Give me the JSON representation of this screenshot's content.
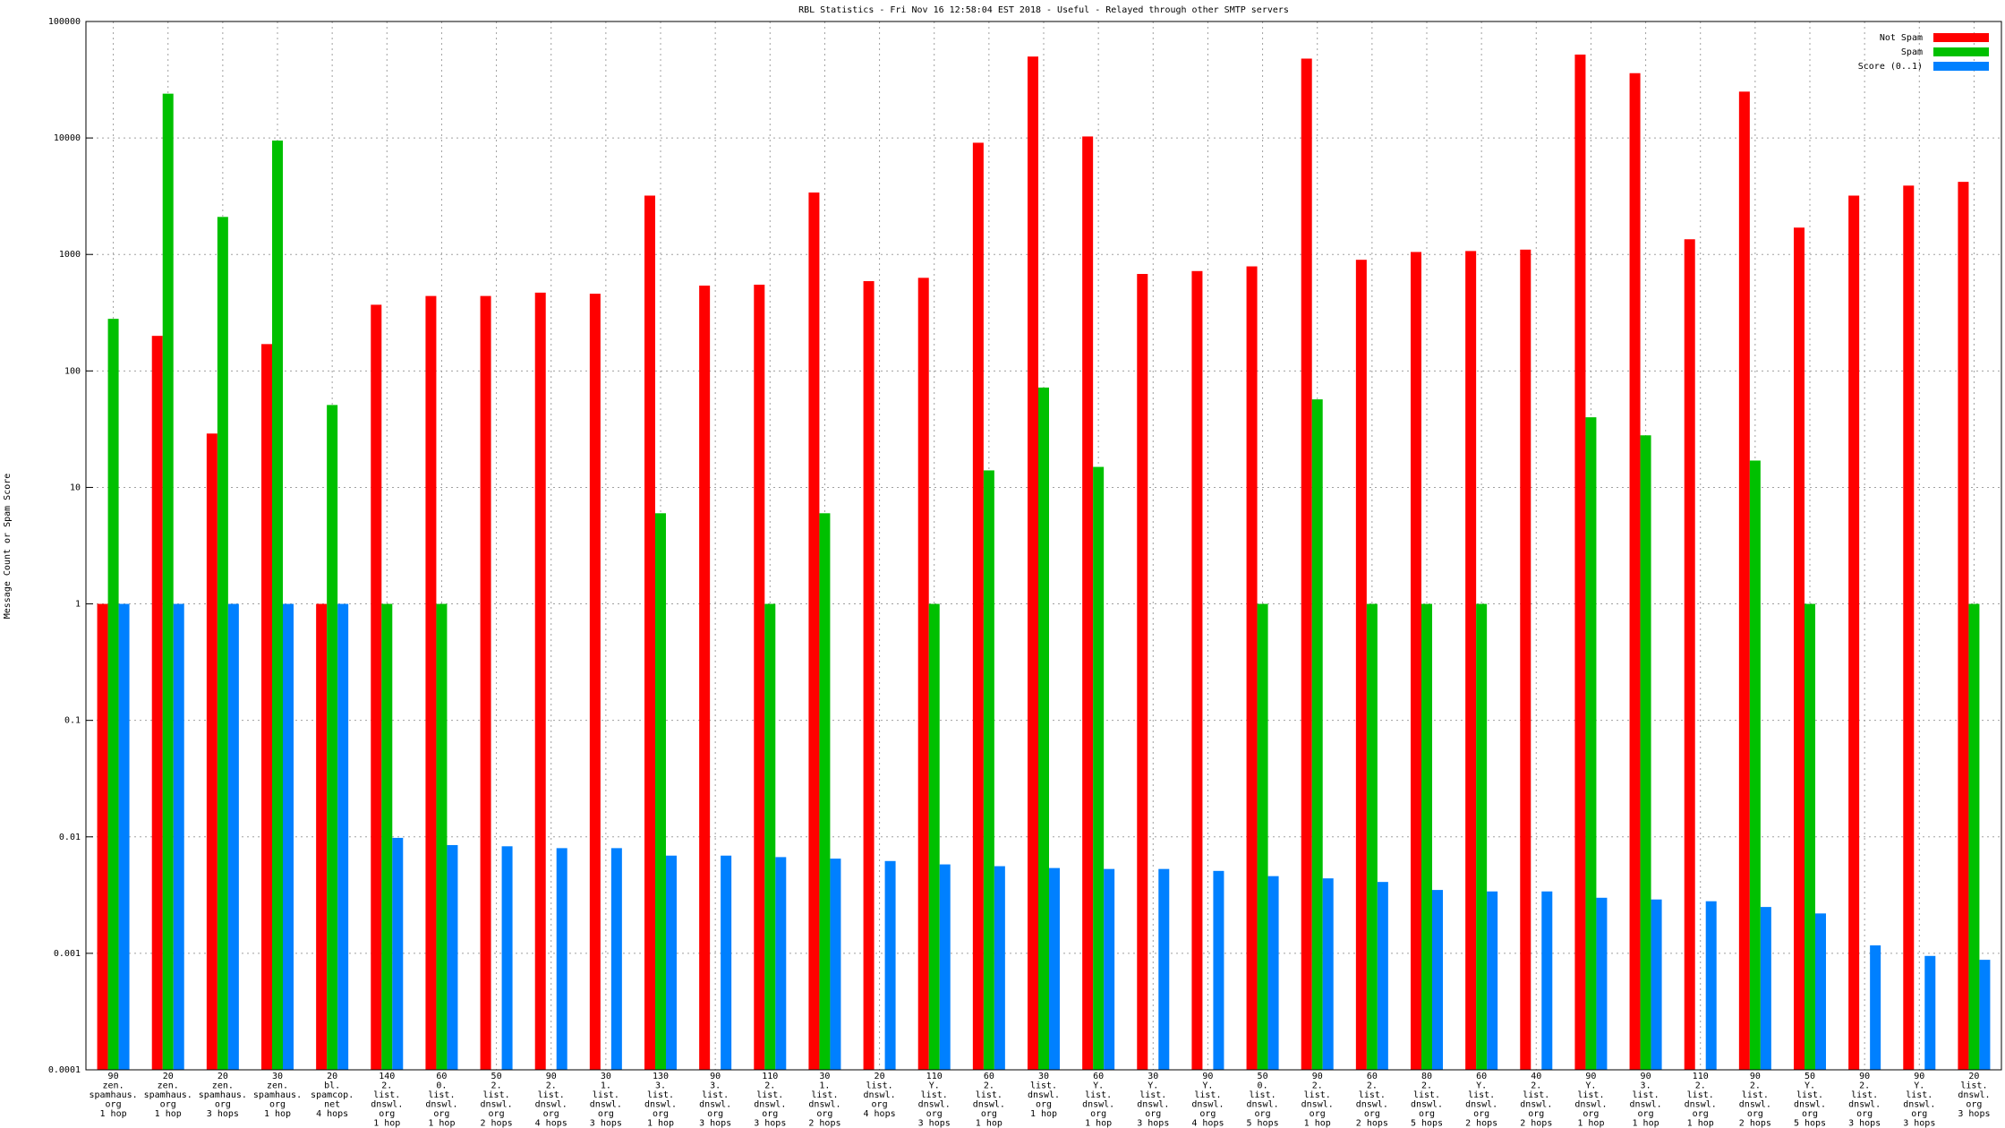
{
  "chart_data": {
    "type": "bar",
    "title": "RBL Statistics - Fri Nov 16 12:58:04 EST 2018 - Useful - Relayed through other SMTP servers",
    "y_label": "Message Count or Spam Score",
    "log_scale": true,
    "grid": true,
    "legend_position": "top-right",
    "ylim": [
      0.0001,
      100000
    ],
    "yticks": [
      0.0001,
      0.001,
      0.01,
      0.1,
      1,
      10,
      100,
      1000,
      10000,
      100000
    ],
    "categories": [
      "90\nzen.\nspamhaus.\norg\n1 hop",
      "20\nzen.\nspamhaus.\norg\n1 hop",
      "20\nzen.\nspamhaus.\norg\n3 hops",
      "30\nzen.\nspamhaus.\norg\n1 hop",
      "20\nbl.\nspamcop.\nnet\n4 hops",
      "140\n2.\nlist.\ndnswl.\norg\n1 hop",
      "60\n0.\nlist.\ndnswl.\norg\n1 hop",
      "50\n2.\nlist.\ndnswl.\norg\n2 hops",
      "90\n2.\nlist.\ndnswl.\norg\n4 hops",
      "30\n1.\nlist.\ndnswl.\norg\n3 hops",
      "130\n3.\nlist.\ndnswl.\norg\n1 hop",
      "90\n3.\nlist.\ndnswl.\norg\n3 hops",
      "110\n2.\nlist.\ndnswl.\norg\n3 hops",
      "30\n1.\nlist.\ndnswl.\norg\n2 hops",
      "20\nlist.\ndnswl.\norg\n4 hops",
      "110\nY.\nlist.\ndnswl.\norg\n3 hops",
      "60\n2.\nlist.\ndnswl.\norg\n1 hop",
      "30\nlist.\ndnswl.\norg\n1 hop",
      "60\nY.\nlist.\ndnswl.\norg\n1 hop",
      "30\nY.\nlist.\ndnswl.\norg\n3 hops",
      "90\nY.\nlist.\ndnswl.\norg\n4 hops",
      "50\n0.\nlist.\ndnswl.\norg\n5 hops",
      "90\n2.\nlist.\ndnswl.\norg\n1 hop",
      "60\n2.\nlist.\ndnswl.\norg\n2 hops",
      "80\n2.\nlist.\ndnswl.\norg\n5 hops",
      "60\nY.\nlist.\ndnswl.\norg\n2 hops",
      "40\n2.\nlist.\ndnswl.\norg\n2 hops",
      "90\nY.\nlist.\ndnswl.\norg\n1 hop",
      "90\n3.\nlist.\ndnswl.\norg\n1 hop",
      "110\n2.\nlist.\ndnswl.\norg\n1 hop",
      "90\n2.\nlist.\ndnswl.\norg\n2 hops",
      "50\nY.\nlist.\ndnswl.\norg\n5 hops",
      "90\n2.\nlist.\ndnswl.\norg\n3 hops",
      "90\nY.\nlist.\ndnswl.\norg\n3 hops",
      "20\nlist.\ndnswl.\norg\n3 hops"
    ],
    "series": [
      {
        "name": "Not Spam",
        "color": "#ff0000",
        "values": [
          1,
          200,
          29,
          170,
          1,
          370,
          440,
          440,
          470,
          460,
          3200,
          540,
          550,
          3400,
          590,
          630,
          9100,
          50000,
          10300,
          680,
          720,
          790,
          48000,
          900,
          1050,
          1070,
          1100,
          52000,
          36000,
          1350,
          25000,
          1700,
          3200,
          3900,
          4200
        ]
      },
      {
        "name": "Spam",
        "color": "#00c000",
        "values": [
          280,
          24000,
          2100,
          9500,
          51,
          1,
          1,
          null,
          null,
          null,
          6,
          null,
          1,
          6,
          null,
          1,
          14,
          72,
          15,
          null,
          null,
          1,
          57,
          1,
          1,
          1,
          null,
          40,
          28,
          null,
          17,
          1,
          null,
          null,
          1
        ]
      },
      {
        "name": "Score (0..1)",
        "color": "#0080ff",
        "values": [
          1,
          1,
          1,
          1,
          1,
          0.0098,
          0.0085,
          0.0083,
          0.008,
          0.008,
          0.0069,
          0.0069,
          0.0067,
          0.0065,
          0.0062,
          0.0058,
          0.0056,
          0.0054,
          0.0053,
          0.0053,
          0.0051,
          0.0046,
          0.0044,
          0.0041,
          0.0035,
          0.0034,
          0.0034,
          0.003,
          0.0029,
          0.0028,
          0.0025,
          0.0022,
          0.00117,
          0.00095,
          0.00088
        ]
      }
    ]
  }
}
